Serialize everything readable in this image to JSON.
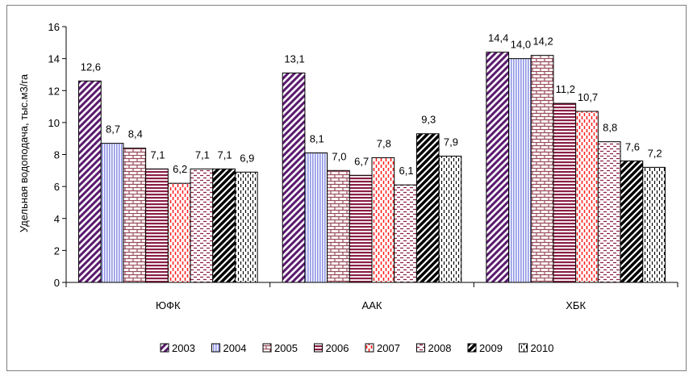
{
  "chart_data": {
    "type": "bar",
    "title": "",
    "xlabel": "",
    "ylabel": "Удельная водоподача, тыс.м3/га",
    "ylim": [
      0,
      16
    ],
    "yticks": [
      0,
      2,
      4,
      6,
      8,
      10,
      12,
      14,
      16
    ],
    "grid": false,
    "legend_position": "bottom",
    "categories": [
      "ЮФК",
      "ААК",
      "ХБК"
    ],
    "series": [
      {
        "name": "2003",
        "values": [
          12.6,
          13.1,
          14.4
        ],
        "labels": [
          "12,6",
          "13,1",
          "14,4"
        ],
        "color": "#5a1a6e",
        "pattern": "diagonal-up"
      },
      {
        "name": "2004",
        "values": [
          8.7,
          8.1,
          14.0
        ],
        "labels": [
          "8,7",
          "8,1",
          "14,0"
        ],
        "color": "#8f95e6",
        "pattern": "vertical"
      },
      {
        "name": "2005",
        "values": [
          8.4,
          7.0,
          14.2
        ],
        "labels": [
          "8,4",
          "7,0",
          "14,2"
        ],
        "color": "#9a4a5a",
        "pattern": "bricks"
      },
      {
        "name": "2006",
        "values": [
          7.1,
          6.7,
          11.2
        ],
        "labels": [
          "7,1",
          "6,7",
          "11,2"
        ],
        "color": "#8a1f45",
        "pattern": "horizontal"
      },
      {
        "name": "2007",
        "values": [
          6.2,
          7.8,
          10.7
        ],
        "labels": [
          "6,2",
          "7,8",
          "10,7"
        ],
        "color": "#ff2020",
        "pattern": "dashed-vertical"
      },
      {
        "name": "2008",
        "values": [
          7.1,
          6.1,
          8.8
        ],
        "labels": [
          "7,1",
          "6,1",
          "8,8"
        ],
        "color": "#8a1f45",
        "pattern": "dashed-horizontal"
      },
      {
        "name": "2009",
        "values": [
          7.1,
          9.3,
          7.6
        ],
        "labels": [
          "7,1",
          "9,3",
          "7,6"
        ],
        "color": "#000000",
        "pattern": "diagonal-up-bold"
      },
      {
        "name": "2010",
        "values": [
          6.9,
          7.9,
          7.2
        ],
        "labels": [
          "6,9",
          "7,9",
          "7,2"
        ],
        "color": "#000000",
        "pattern": "dashed-vertical-thin"
      }
    ]
  }
}
